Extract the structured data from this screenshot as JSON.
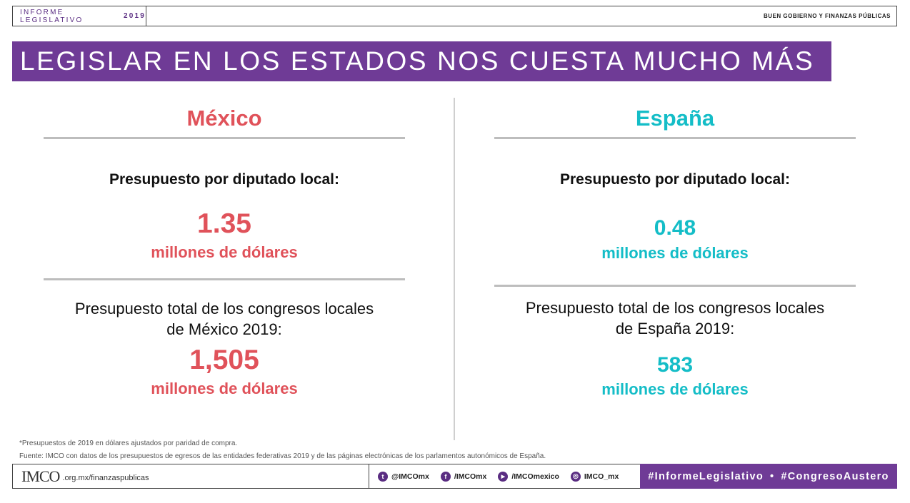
{
  "header": {
    "left_label": "INFORME LEGISLATIVO",
    "left_year": "2019",
    "right_label": "BUEN GOBIERNO Y FINANZAS PÚBLICAS"
  },
  "title": "LEGISLAR EN LOS ESTADOS NOS CUESTA MUCHO MÁS",
  "mexico": {
    "country": "México",
    "per_deputy_label": "Presupuesto por diputado local:",
    "per_deputy_value": "1.35",
    "per_deputy_unit": "millones de dólares",
    "total_label_line1": "Presupuesto total de los congresos locales",
    "total_label_line2": "de México 2019:",
    "total_value": "1,505",
    "total_unit": "millones de dólares"
  },
  "spain": {
    "country": "España",
    "per_deputy_label": "Presupuesto por diputado local:",
    "per_deputy_value": "0.48",
    "per_deputy_unit": "millones de dólares",
    "total_label_line1": "Presupuesto total de los congresos locales",
    "total_label_line2": "de España 2019:",
    "total_value": "583",
    "total_unit": "millones de dólares"
  },
  "footnotes": {
    "note": "*Presupuestos de 2019 en dólares ajustados por paridad de compra.",
    "source": "Fuente: IMCO con datos de los presupuestos de egresos de las entidades federativas 2019 y de las páginas electrónicas de los parlamentos autonómicos de España."
  },
  "footer": {
    "logo": "IMCO",
    "url": ".org.mx/finanzaspublicas",
    "social": [
      {
        "icon": "twitter-icon",
        "glyph": "t",
        "handle": "@IMCOmx"
      },
      {
        "icon": "facebook-icon",
        "glyph": "f",
        "handle": "/IMCOmx"
      },
      {
        "icon": "youtube-icon",
        "glyph": "▶",
        "handle": "/IMCOmexico"
      },
      {
        "icon": "instagram-icon",
        "glyph": "◎",
        "handle": "IMCO_mx"
      }
    ],
    "hashtag1": "#InformeLegislativo",
    "separator": "•",
    "hashtag2": "#CongresoAustero"
  },
  "colors": {
    "purple": "#6f3b96",
    "mexico_red": "#e0525a",
    "spain_teal": "#14bdc7"
  }
}
